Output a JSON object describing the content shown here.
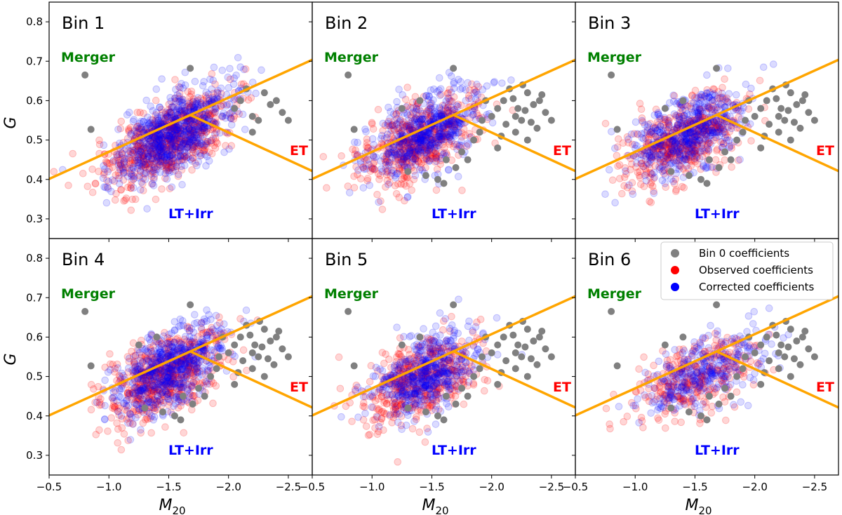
{
  "chart_data": {
    "type": "scatter",
    "layout": "2x3 grid of panels with shared axes",
    "xlabel": "M",
    "xlabel_sub": "20",
    "ylabel": "G",
    "xlim": [
      -0.5,
      -2.7
    ],
    "ylim": [
      0.25,
      0.85
    ],
    "xticks": [
      -0.5,
      -1.0,
      -1.5,
      -2.0,
      -2.5
    ],
    "xtick_labels": [
      "−0.5",
      "−1.0",
      "−1.5",
      "−2.0",
      "−2.5"
    ],
    "yticks": [
      0.3,
      0.4,
      0.5,
      0.6,
      0.7,
      0.8
    ],
    "ytick_labels": [
      "0.3",
      "0.4",
      "0.5",
      "0.6",
      "0.7",
      "0.8"
    ],
    "boundaries": [
      {
        "name": "merger-boundary",
        "from": [
          -0.5,
          0.4013
        ],
        "to": [
          -2.7,
          0.7037
        ],
        "color": "#ffa500"
      },
      {
        "name": "et-ltirr-boundary",
        "from": [
          -1.68,
          0.5637
        ],
        "to": [
          -2.7,
          0.4213
        ],
        "color": "#ffa500"
      }
    ],
    "regions": [
      {
        "label": "Merger",
        "color": "#008000"
      },
      {
        "label": "ET",
        "color": "#ff0000"
      },
      {
        "label": "LT+Irr",
        "color": "#0000ff"
      }
    ],
    "legend": {
      "placement": "top-right of last panel",
      "entries": [
        {
          "label": "Bin 0 coefficients",
          "color": "#808080"
        },
        {
          "label": "Observed coefficients",
          "color": "#ff0000"
        },
        {
          "label": "Corrected coefficients",
          "color": "#0000ff"
        }
      ]
    },
    "series_colors": {
      "bin0": "#808080",
      "observed": "#ff0000",
      "corrected": "#0000ff"
    },
    "bin0_points": [
      [
        -0.8,
        0.665
      ],
      [
        -1.68,
        0.682
      ],
      [
        -0.85,
        0.527
      ],
      [
        -2.2,
        0.56
      ],
      [
        -2.1,
        0.6
      ],
      [
        -2.3,
        0.62
      ],
      [
        -2.35,
        0.59
      ],
      [
        -2.45,
        0.57
      ],
      [
        -2.25,
        0.55
      ],
      [
        -2.4,
        0.6
      ],
      [
        -2.15,
        0.63
      ],
      [
        -2.05,
        0.58
      ],
      [
        -2.5,
        0.55
      ],
      [
        -2.2,
        0.52
      ],
      [
        -2.3,
        0.5
      ],
      [
        -2.38,
        0.53
      ],
      [
        -2.0,
        0.56
      ],
      [
        -1.95,
        0.6
      ],
      [
        -2.12,
        0.54
      ],
      [
        -2.28,
        0.575
      ],
      [
        -1.9,
        0.52
      ],
      [
        -1.8,
        0.45
      ],
      [
        -1.7,
        0.43
      ],
      [
        -1.55,
        0.4
      ],
      [
        -1.45,
        0.41
      ],
      [
        -1.6,
        0.39
      ],
      [
        -2.05,
        0.48
      ],
      [
        -1.75,
        0.47
      ],
      [
        -2.18,
        0.605
      ],
      [
        -1.3,
        0.42
      ],
      [
        -1.25,
        0.58
      ],
      [
        -1.4,
        0.6
      ],
      [
        -2.42,
        0.615
      ],
      [
        -2.22,
        0.58
      ],
      [
        -1.92,
        0.55
      ],
      [
        -1.85,
        0.5
      ],
      [
        -2.26,
        0.64
      ],
      [
        -2.33,
        0.545
      ],
      [
        -1.62,
        0.45
      ],
      [
        -2.08,
        0.51
      ]
    ],
    "panels": [
      {
        "title": "Bin 1",
        "region_labels": {
          "merger": "Merger",
          "et": "ET",
          "ltirr": "LT+Irr"
        },
        "cloud": {
          "x_center": -1.5,
          "y_center": 0.5,
          "x_spread": 0.5,
          "slope": -0.14,
          "noise": 0.05,
          "count": 650
        },
        "bin0_count": 14
      },
      {
        "title": "Bin 2",
        "region_labels": {
          "merger": "Merger",
          "et": "ET",
          "ltirr": "LT+Irr"
        },
        "cloud": {
          "x_center": -1.4,
          "y_center": 0.5,
          "x_spread": 0.45,
          "slope": -0.12,
          "noise": 0.05,
          "count": 500
        },
        "bin0_count": 40
      },
      {
        "title": "Bin 3",
        "region_labels": {
          "merger": "Merger",
          "et": "ET",
          "ltirr": "LT+Irr"
        },
        "cloud": {
          "x_center": -1.4,
          "y_center": 0.5,
          "x_spread": 0.45,
          "slope": -0.12,
          "noise": 0.05,
          "count": 480
        },
        "bin0_count": 40
      },
      {
        "title": "Bin 4",
        "region_labels": {
          "merger": "Merger",
          "et": "ET",
          "ltirr": "LT+Irr"
        },
        "cloud": {
          "x_center": -1.45,
          "y_center": 0.5,
          "x_spread": 0.45,
          "slope": -0.12,
          "noise": 0.05,
          "count": 560
        },
        "bin0_count": 40
      },
      {
        "title": "Bin 5",
        "region_labels": {
          "merger": "Merger",
          "et": "ET",
          "ltirr": "LT+Irr"
        },
        "cloud": {
          "x_center": -1.4,
          "y_center": 0.49,
          "x_spread": 0.42,
          "slope": -0.12,
          "noise": 0.05,
          "count": 460
        },
        "bin0_count": 40
      },
      {
        "title": "Bin 6",
        "region_labels": {
          "merger": "Merger",
          "et": "ET",
          "ltirr": "LT+Irr"
        },
        "cloud": {
          "x_center": -1.55,
          "y_center": 0.5,
          "x_spread": 0.5,
          "slope": -0.1,
          "noise": 0.045,
          "count": 300
        },
        "bin0_count": 40
      }
    ]
  }
}
